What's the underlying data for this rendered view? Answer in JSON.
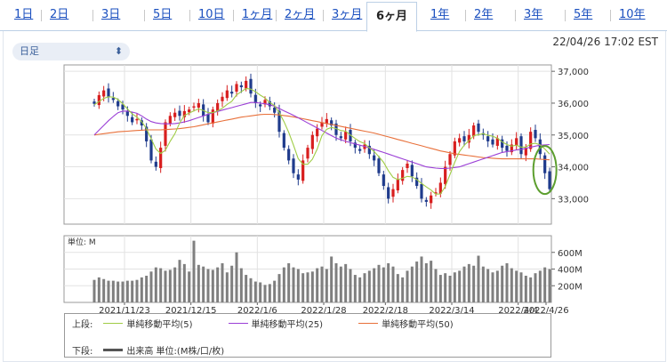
{
  "tabs": [
    {
      "label": "1日"
    },
    {
      "label": "2日"
    },
    {
      "label": "3日"
    },
    {
      "label": "5日"
    },
    {
      "label": "10日"
    },
    {
      "label": "1ヶ月"
    },
    {
      "label": "2ヶ月"
    },
    {
      "label": "3ヶ月"
    },
    {
      "label": "6ヶ月",
      "active": true
    },
    {
      "label": "1年"
    },
    {
      "label": "2年"
    },
    {
      "label": "3年"
    },
    {
      "label": "5年"
    },
    {
      "label": "10年"
    }
  ],
  "selector": {
    "value": "日足",
    "icon": "up-down-chevron-icon"
  },
  "timestamp": "22/04/26 17:02 EST",
  "legend": {
    "upper_label": "上段:",
    "lower_label": "下段:",
    "ma5": "単純移動平均(5)",
    "ma25": "単純移動平均(25)",
    "ma50": "単純移動平均(50)",
    "volume": "出来高 単位:(M株/口/枚)"
  },
  "colors": {
    "up": "#d81e1e",
    "down": "#1f3b8c",
    "ma5": "#9fcc45",
    "ma25": "#9b3fd6",
    "ma50": "#e8703a",
    "volume": "#7f7f7f",
    "highlight": "#5c9e2e"
  },
  "chart_data": [
    {
      "type": "candlestick",
      "y_ticks": [
        "37,000",
        "36,000",
        "35,000",
        "34,000",
        "33,000"
      ],
      "ylim": [
        32200,
        37200
      ],
      "ohlc_start_center": [
        35950,
        36050
      ],
      "closes": [
        35980,
        36250,
        36400,
        36200,
        36100,
        35900,
        35800,
        35600,
        35400,
        35500,
        35300,
        34800,
        34200,
        34000,
        34600,
        35400,
        35600,
        35700,
        35600,
        35750,
        35800,
        35900,
        36000,
        35600,
        35400,
        35800,
        36000,
        36200,
        36400,
        36300,
        36600,
        36500,
        36700,
        36300,
        36000,
        35900,
        36100,
        35900,
        35700,
        35100,
        34600,
        34200,
        33800,
        33600,
        34200,
        34600,
        35000,
        35200,
        35400,
        35500,
        35300,
        35000,
        34900,
        35100,
        34800,
        34600,
        34500,
        34700,
        34400,
        34200,
        33800,
        33400,
        33000,
        33300,
        33600,
        33900,
        34100,
        33700,
        33400,
        33000,
        32900,
        33100,
        33200,
        33500,
        34000,
        34400,
        34800,
        34900,
        34800,
        35000,
        35300,
        35100,
        35000,
        34800,
        34700,
        34900,
        34600,
        34500,
        34700,
        34900,
        34400,
        34600,
        35100,
        34900,
        34400,
        33800,
        33300
      ],
      "ma5": [
        35950,
        36050,
        36150,
        36200,
        36190,
        36120,
        35980,
        35820,
        35660,
        35560,
        35420,
        35200,
        34880,
        34560,
        34420,
        34520,
        34800,
        35040,
        35380,
        35610,
        35690,
        35760,
        35820,
        35770,
        35700,
        35700,
        35760,
        35840,
        35960,
        36060,
        36260,
        36360,
        36460,
        36440,
        36360,
        36250,
        36160,
        36020,
        35920,
        35700,
        35420,
        35080,
        34680,
        34260,
        34080,
        34080,
        34240,
        34560,
        34980,
        35180,
        35240,
        35200,
        35140,
        35120,
        35000,
        34890,
        34790,
        34730,
        34600,
        34480,
        34320,
        34140,
        33880,
        33670,
        33600,
        33640,
        33700,
        33680,
        33600,
        33480,
        33370,
        33270,
        33140,
        33150,
        33380,
        33760,
        34140,
        34480,
        34680,
        34820,
        34980,
        35010,
        35040,
        34990,
        34960,
        34900,
        34780,
        34700,
        34650,
        34680,
        34620,
        34620,
        34720,
        34740,
        34690,
        34560,
        34400
      ],
      "ma25": [
        35000,
        35150,
        35300,
        35450,
        35580,
        35700,
        35750,
        35750,
        35720,
        35680,
        35600,
        35500,
        35420,
        35380,
        35360,
        35350,
        35350,
        35360,
        35380,
        35410,
        35450,
        35500,
        35550,
        35600,
        35650,
        35700,
        35740,
        35780,
        35820,
        35860,
        35900,
        35940,
        35980,
        36020,
        36020,
        36000,
        35980,
        35950,
        35900,
        35830,
        35760,
        35690,
        35620,
        35540,
        35460,
        35380,
        35300,
        35220,
        35140,
        35060,
        34980,
        34900,
        34850,
        34800,
        34760,
        34720,
        34680,
        34640,
        34600,
        34550,
        34500,
        34450,
        34400,
        34350,
        34300,
        34250,
        34200,
        34150,
        34100,
        34050,
        34000,
        33980,
        33960,
        33950,
        33950,
        33960,
        33980,
        34000,
        34050,
        34100,
        34150,
        34200,
        34250,
        34300,
        34350,
        34400,
        34450,
        34480,
        34500,
        34530,
        34550,
        34580,
        34620,
        34650,
        34680,
        34690,
        34700
      ],
      "ma50": [
        35000,
        35020,
        35040,
        35060,
        35080,
        35100,
        35110,
        35120,
        35130,
        35140,
        35150,
        35160,
        35160,
        35160,
        35160,
        35170,
        35180,
        35190,
        35200,
        35220,
        35240,
        35260,
        35290,
        35320,
        35350,
        35380,
        35410,
        35440,
        35470,
        35500,
        35530,
        35560,
        35580,
        35600,
        35620,
        35640,
        35650,
        35650,
        35640,
        35630,
        35610,
        35590,
        35570,
        35540,
        35510,
        35480,
        35450,
        35420,
        35390,
        35360,
        35330,
        35300,
        35270,
        35240,
        35210,
        35180,
        35150,
        35120,
        35090,
        35060,
        35020,
        34980,
        34940,
        34900,
        34860,
        34820,
        34780,
        34740,
        34700,
        34660,
        34620,
        34580,
        34540,
        34500,
        34470,
        34440,
        34410,
        34390,
        34370,
        34350,
        34330,
        34310,
        34290,
        34280,
        34270,
        34260,
        34250,
        34250,
        34250,
        34250,
        34250,
        34250,
        34250,
        34250,
        34240,
        34230,
        34220
      ]
    },
    {
      "type": "bar",
      "unit_label": "単位: M",
      "y_ticks": [
        "600M",
        "400M",
        "200M"
      ],
      "ylim": [
        0,
        800
      ],
      "x_ticks": [
        "2021/11/23",
        "2021/12/15",
        "2022/1/6",
        "2022/1/28",
        "2022/2/18",
        "2022/3/14",
        "2022/4/4",
        "2022/4/26"
      ],
      "values": [
        270,
        300,
        280,
        260,
        260,
        250,
        250,
        260,
        260,
        270,
        300,
        320,
        370,
        420,
        410,
        380,
        390,
        420,
        510,
        460,
        370,
        740,
        450,
        430,
        400,
        390,
        420,
        470,
        360,
        440,
        600,
        410,
        330,
        290,
        250,
        240,
        210,
        220,
        260,
        340,
        420,
        470,
        420,
        400,
        350,
        360,
        370,
        410,
        430,
        400,
        550,
        470,
        430,
        460,
        400,
        330,
        300,
        350,
        380,
        410,
        450,
        420,
        470,
        430,
        340,
        300,
        380,
        430,
        490,
        550,
        470,
        500,
        400,
        330,
        350,
        320,
        360,
        380,
        430,
        460,
        440,
        560,
        430,
        400,
        360,
        380,
        440,
        470,
        410,
        380,
        360,
        320,
        300,
        350,
        380,
        420,
        400
      ]
    }
  ]
}
